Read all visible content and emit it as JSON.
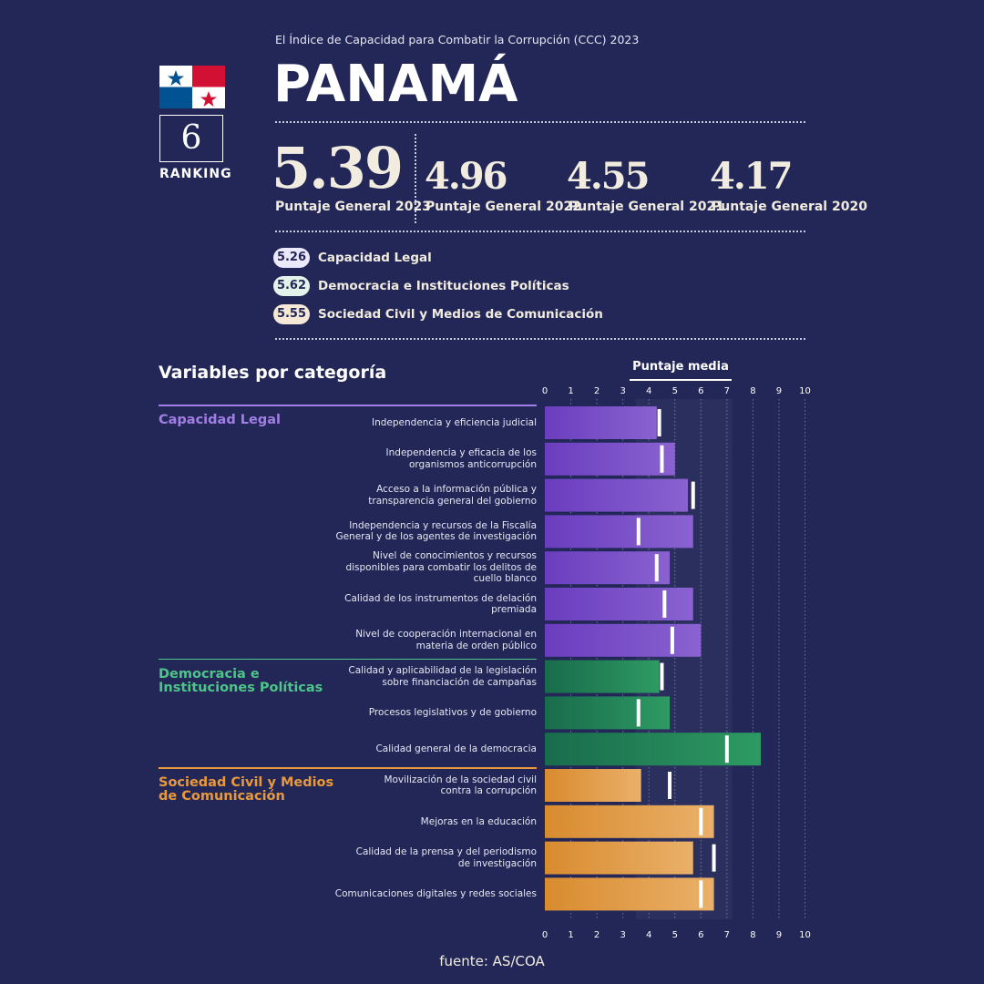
{
  "header": {
    "subtitle": "El Índice de Capacidad para Combatir la Corrupción (CCC) 2023",
    "country": "PANAMÁ",
    "ranking_value": "6",
    "ranking_label": "RANKING"
  },
  "scores": [
    {
      "value": "5.39",
      "label": "Puntaje General 2023"
    },
    {
      "value": "4.96",
      "label": "Puntaje General 2022"
    },
    {
      "value": "4.55",
      "label": "Puntaje General 2021"
    },
    {
      "value": "4.17",
      "label": "Puntaje General 2020"
    }
  ],
  "subscores": [
    {
      "value": "5.26",
      "label": "Capacidad Legal",
      "color": "#ece8fb"
    },
    {
      "value": "5.62",
      "label": "Democracia e Instituciones Políticas",
      "color": "#e3f3ea"
    },
    {
      "value": "5.55",
      "label": "Sociedad Civil y Medios de Comunicación",
      "color": "#f6e8d6"
    }
  ],
  "section_title": "Variables por categoría",
  "legend_label": "Puntaje media",
  "footer": "fuente: AS/COA",
  "chart_data": {
    "type": "bar",
    "orientation": "horizontal",
    "xlim": [
      0,
      10
    ],
    "ticks": [
      "0",
      "1",
      "2",
      "3",
      "4",
      "5",
      "6",
      "7",
      "8",
      "9",
      "10"
    ],
    "markers_meaning": "Puntaje media",
    "categories": [
      {
        "name": "Capacidad Legal",
        "color": "#a27ee6",
        "bar_color": "#6a3dbf",
        "bar_light": "#8a62d0",
        "rows": [
          {
            "label": [
              "Independencia y eficiencia judicial"
            ],
            "value": 4.3,
            "mean": 4.4
          },
          {
            "label": [
              "Independencia y eficacia de los",
              "organismos anticorrupción"
            ],
            "value": 5.0,
            "mean": 4.5
          },
          {
            "label": [
              "Acceso a la información pública y",
              "transparencia general del gobierno"
            ],
            "value": 5.5,
            "mean": 5.7
          },
          {
            "label": [
              "Independencia y recursos de la Fiscalía",
              "General y de los agentes de investigación"
            ],
            "value": 5.7,
            "mean": 3.6
          },
          {
            "label": [
              "Nivel de conocimientos y recursos",
              "disponibles para combatir los delitos de",
              "cuello blanco"
            ],
            "value": 4.8,
            "mean": 4.3
          },
          {
            "label": [
              "Calidad de los instrumentos de delación",
              "premiada"
            ],
            "value": 5.7,
            "mean": 4.6
          },
          {
            "label": [
              "Nivel de cooperación internacional en",
              "materia de orden público"
            ],
            "value": 6.0,
            "mean": 4.9
          }
        ]
      },
      {
        "name": "Democracia e Instituciones Políticas",
        "color": "#4fc48a",
        "bar_color": "#17784a",
        "bar_light": "#2e9b63",
        "rows": [
          {
            "label": [
              "Calidad y aplicabilidad de la legislación",
              "sobre financiación de campañas"
            ],
            "value": 4.4,
            "mean": 4.5
          },
          {
            "label": [
              "Procesos legislativos y de gobierno"
            ],
            "value": 4.8,
            "mean": 3.6
          },
          {
            "label": [
              "Calidad general de la democracia"
            ],
            "value": 8.3,
            "mean": 7.0
          }
        ]
      },
      {
        "name": "Sociedad Civil y Medios de Comunicación",
        "color": "#e8993d",
        "bar_color": "#d98b2e",
        "bar_light": "#eab06a",
        "rows": [
          {
            "label": [
              "Movilización de la sociedad civil",
              "contra la corrupción"
            ],
            "value": 3.7,
            "mean": 4.8
          },
          {
            "label": [
              "Mejoras en la educación"
            ],
            "value": 6.5,
            "mean": 6.0
          },
          {
            "label": [
              "Calidad de la prensa y del periodismo",
              "de investigación"
            ],
            "value": 5.7,
            "mean": 6.5
          },
          {
            "label": [
              "Comunicaciones digitales y redes sociales"
            ],
            "value": 6.5,
            "mean": 6.0
          }
        ]
      }
    ]
  }
}
